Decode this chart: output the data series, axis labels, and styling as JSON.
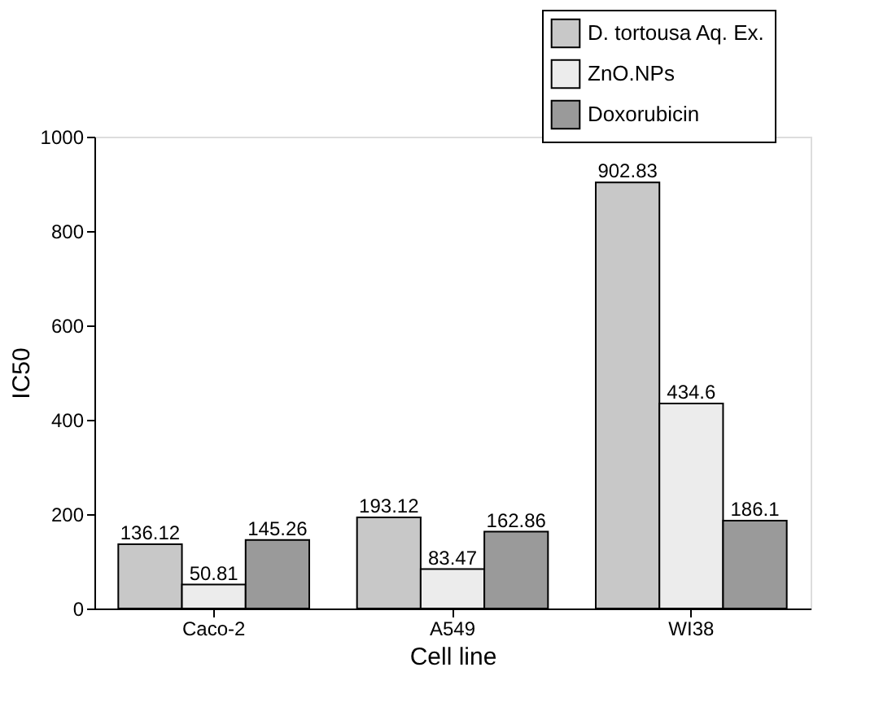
{
  "chart_data": {
    "type": "bar",
    "xlabel": "Cell line",
    "ylabel": "IC50",
    "categories": [
      "Caco-2",
      "A549",
      "WI38"
    ],
    "series": [
      {
        "name": "D. tortousa Aq. Ex.",
        "color": "#c8c8c8",
        "values": [
          136.12,
          193.12,
          902.83
        ]
      },
      {
        "name": "ZnO.NPs",
        "color": "#ececec",
        "values": [
          50.81,
          83.47,
          434.6
        ]
      },
      {
        "name": "Doxorubicin",
        "color": "#9a9a9a",
        "values": [
          145.26,
          162.86,
          186.1
        ]
      }
    ],
    "ylim": [
      0,
      1000
    ],
    "yticks": [
      0,
      200,
      400,
      600,
      800,
      1000
    ],
    "data_labels": true,
    "grid": false,
    "legend": "top right"
  }
}
